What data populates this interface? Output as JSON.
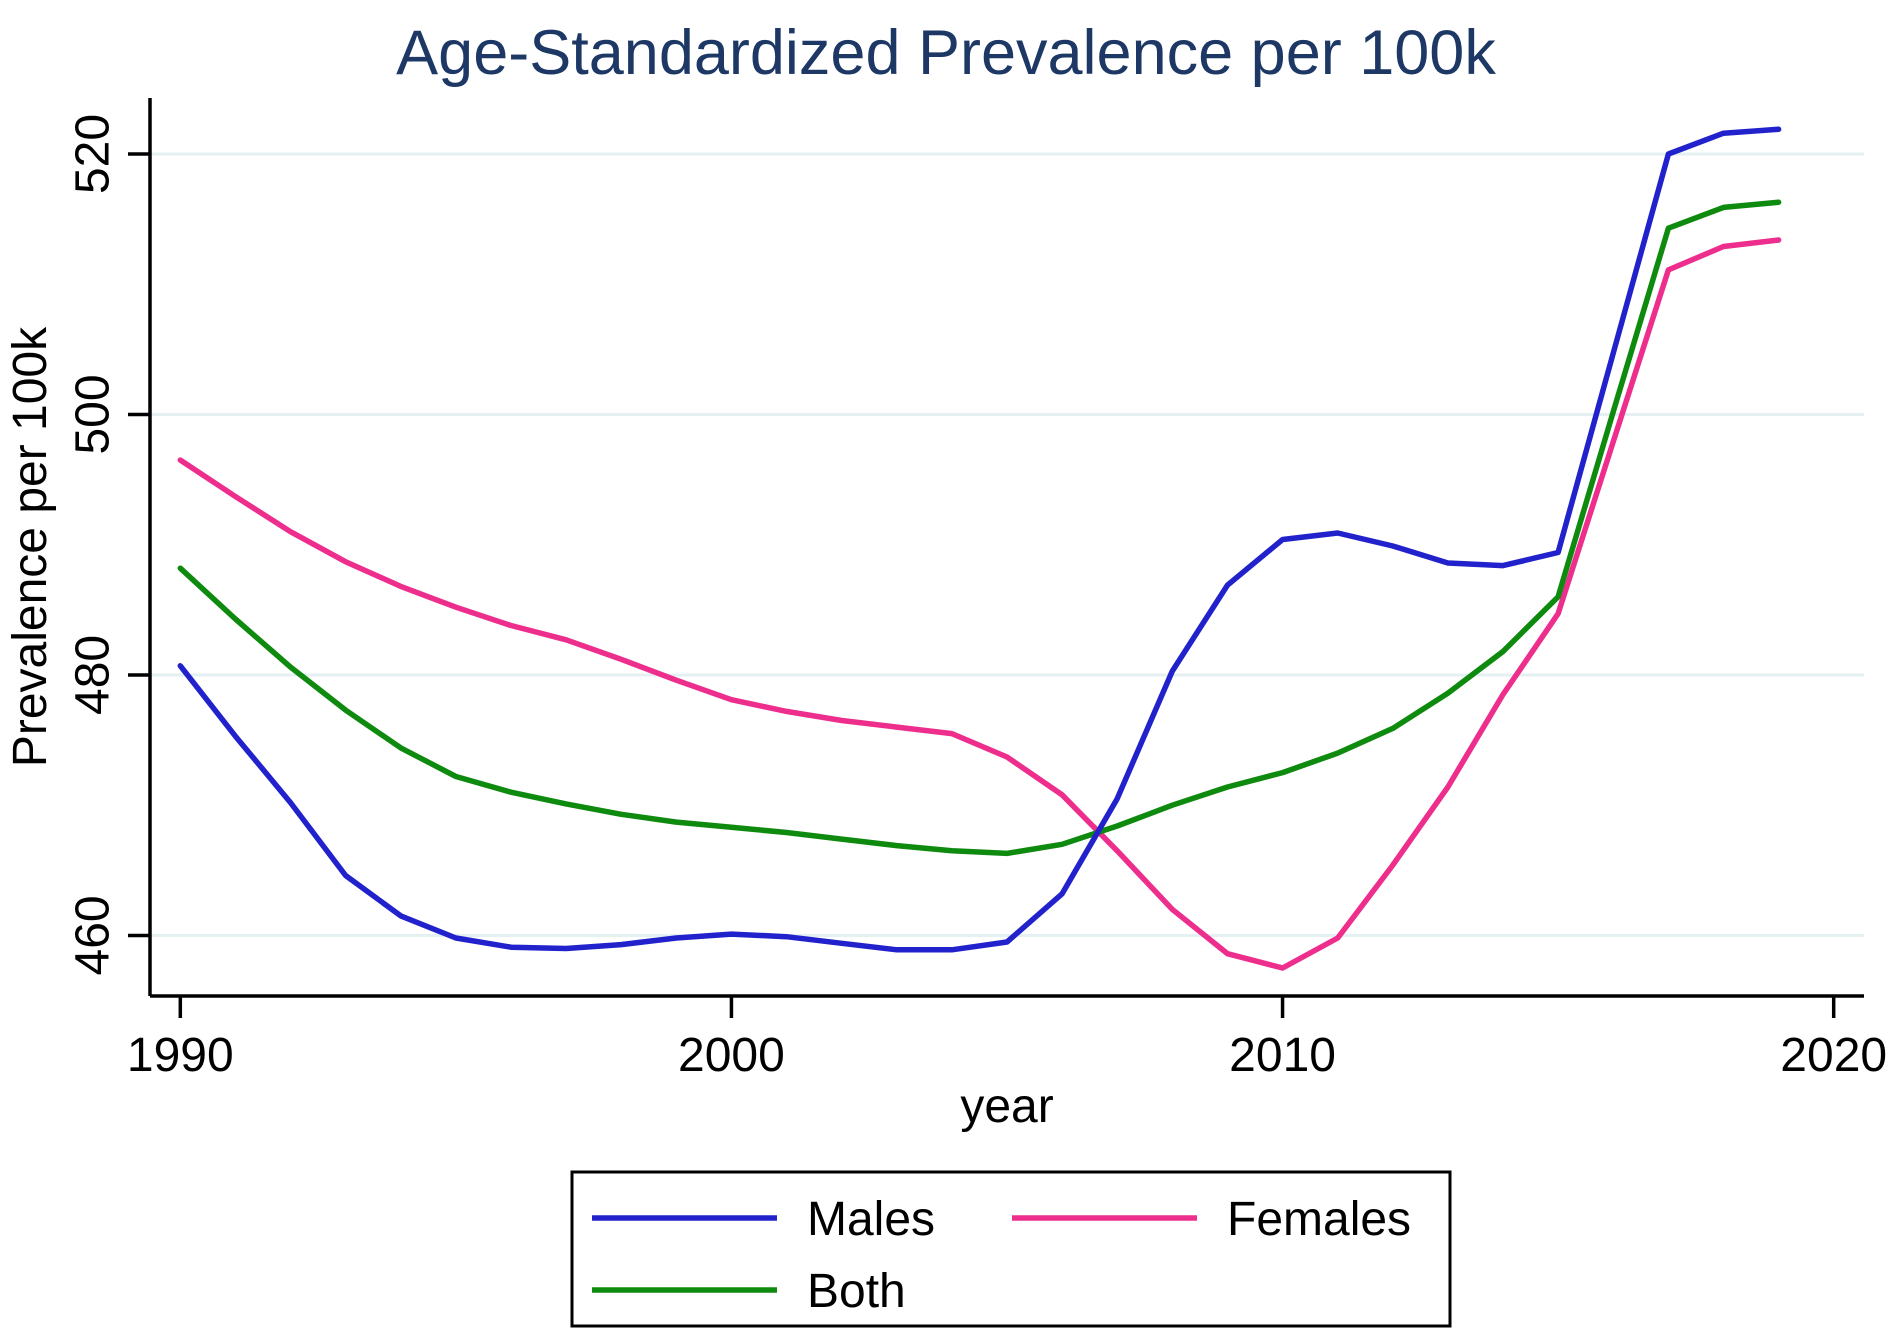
{
  "title": "Age-Standardized Prevalence per 100k",
  "colors": {
    "title": "#1e3866",
    "axis": "#000000",
    "grid": "#e4f0f2",
    "males": "#2222cc",
    "females": "#ed2e8c",
    "both": "#0e8a0e",
    "background": "#ffffff",
    "legend_border": "#000000"
  },
  "chart_data": {
    "type": "line",
    "title": "Age-Standardized Prevalence per 100k",
    "xlabel": "year",
    "ylabel": "Prevalence per 100k",
    "x": [
      1990,
      1991,
      1992,
      1993,
      1994,
      1995,
      1996,
      1997,
      1998,
      1999,
      2000,
      2001,
      2002,
      2003,
      2004,
      2005,
      2006,
      2007,
      2008,
      2009,
      2010,
      2011,
      2012,
      2013,
      2014,
      2015,
      2016,
      2017,
      2018,
      2019
    ],
    "series": [
      {
        "name": "Males",
        "color": "#2222cc",
        "values": [
          480.7,
          475.3,
          470.2,
          464.6,
          461.5,
          459.8,
          459.1,
          459.0,
          459.3,
          459.8,
          460.1,
          459.9,
          459.4,
          458.9,
          458.9,
          459.5,
          463.2,
          470.5,
          480.3,
          486.9,
          490.4,
          490.9,
          489.9,
          488.6,
          488.4,
          489.4,
          504.7,
          520.0,
          521.6,
          521.9
        ]
      },
      {
        "name": "Females",
        "color": "#ed2e8c",
        "values": [
          496.5,
          493.7,
          491.0,
          488.7,
          486.8,
          485.2,
          483.8,
          482.7,
          481.2,
          479.6,
          478.1,
          477.2,
          476.5,
          476.0,
          475.5,
          473.7,
          470.8,
          466.5,
          462.0,
          458.6,
          457.5,
          459.8,
          465.4,
          471.4,
          478.5,
          484.7,
          497.9,
          511.1,
          512.9,
          513.4
        ]
      },
      {
        "name": "Both",
        "color": "#0e8a0e",
        "values": [
          488.2,
          484.3,
          480.6,
          477.3,
          474.4,
          472.2,
          471.0,
          470.1,
          469.3,
          468.7,
          468.3,
          467.9,
          467.4,
          466.9,
          466.5,
          466.3,
          467.0,
          468.4,
          470.0,
          471.4,
          472.5,
          474.0,
          475.9,
          478.6,
          481.8,
          486.0,
          500.2,
          514.3,
          515.9,
          516.3
        ]
      }
    ],
    "xticks": [
      1990,
      2000,
      2010,
      2020
    ],
    "yticks": [
      460,
      480,
      500,
      520
    ],
    "xlim": [
      1989.45,
      2020.55
    ],
    "ylim": [
      455.35,
      524.3
    ],
    "grid": "horizontal-only",
    "legend_position": "bottom-box",
    "legend_rows": [
      [
        "Males",
        "Females"
      ],
      [
        "Both"
      ]
    ]
  }
}
